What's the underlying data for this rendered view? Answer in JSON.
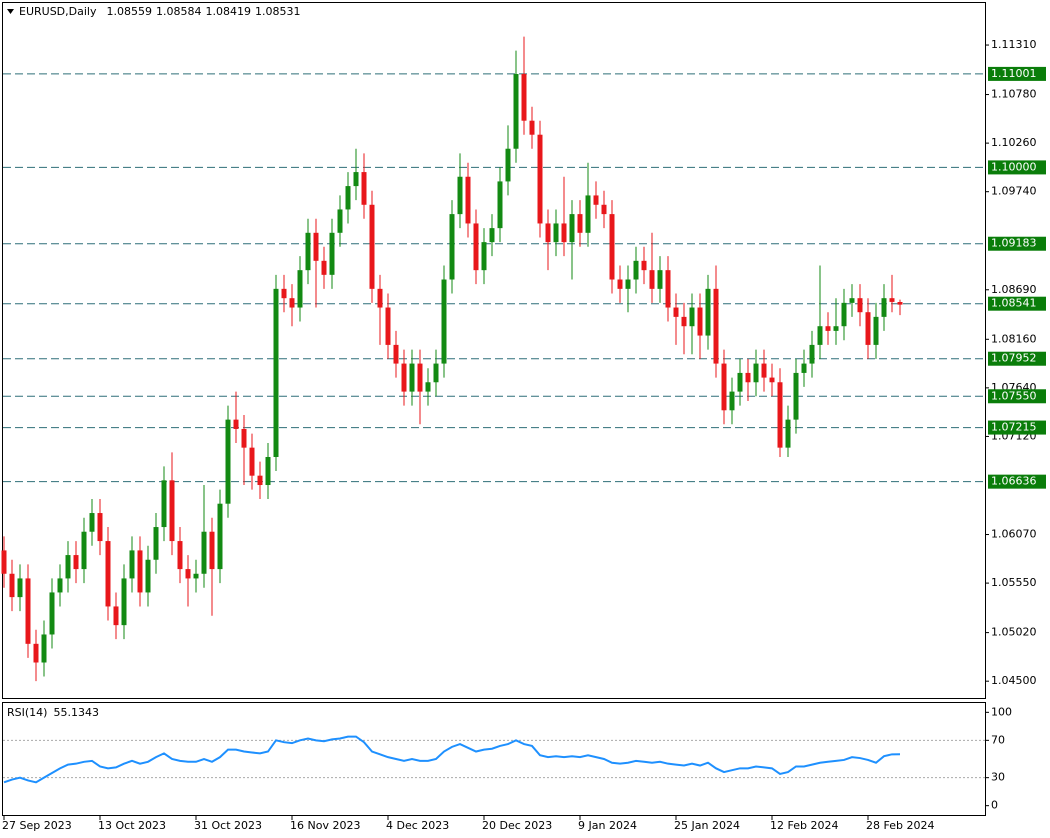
{
  "chart_data": [
    {
      "type": "candlestick",
      "title": "EURUSD,Daily",
      "up_color": "#138a13",
      "down_color": "#e8171b",
      "level_color": "#2f6f78",
      "level_label_color": "#0a7d0a",
      "categories": [
        "27 Sep 2023",
        null,
        null,
        null,
        null,
        null,
        null,
        null,
        null,
        null,
        null,
        null,
        "13 Oct 2023",
        null,
        null,
        null,
        null,
        null,
        null,
        null,
        null,
        null,
        null,
        null,
        "31 Oct 2023",
        null,
        null,
        null,
        null,
        null,
        null,
        null,
        null,
        null,
        null,
        null,
        "16 Nov 2023",
        null,
        null,
        null,
        null,
        null,
        null,
        null,
        null,
        null,
        null,
        null,
        "4 Dec 2023",
        null,
        null,
        null,
        null,
        null,
        null,
        null,
        null,
        null,
        null,
        null,
        "20 Dec 2023",
        null,
        null,
        null,
        null,
        null,
        null,
        null,
        null,
        null,
        null,
        null,
        "9 Jan 2024",
        null,
        null,
        null,
        null,
        null,
        null,
        null,
        null,
        null,
        null,
        null,
        "25 Jan 2024",
        null,
        null,
        null,
        null,
        null,
        null,
        null,
        null,
        null,
        null,
        null,
        "12 Feb 2024",
        null,
        null,
        null,
        null,
        null,
        null,
        null,
        null,
        null,
        null,
        null,
        "28 Feb 2024",
        null,
        null,
        null,
        null
      ],
      "open": [
        1.059,
        1.0565,
        1.054,
        1.056,
        1.049,
        1.047,
        1.05,
        1.0545,
        1.056,
        1.0585,
        1.057,
        1.061,
        1.063,
        1.06,
        1.053,
        1.051,
        1.056,
        1.059,
        1.0545,
        1.058,
        1.0615,
        1.0665,
        1.06,
        1.057,
        1.056,
        1.0565,
        1.061,
        1.057,
        1.064,
        1.073,
        1.072,
        1.07,
        1.067,
        1.066,
        1.069,
        1.087,
        1.086,
        1.085,
        1.089,
        1.093,
        1.09,
        1.0885,
        1.093,
        1.0955,
        1.098,
        1.0995,
        1.096,
        1.087,
        1.085,
        1.081,
        1.079,
        1.076,
        1.079,
        1.076,
        1.077,
        1.079,
        1.088,
        1.095,
        1.099,
        1.094,
        1.089,
        1.092,
        1.0935,
        1.0985,
        1.102,
        1.11,
        1.105,
        1.1035,
        1.094,
        1.092,
        1.094,
        1.092,
        1.095,
        1.093,
        1.097,
        1.096,
        1.095,
        1.088,
        1.087,
        1.088,
        1.09,
        1.089,
        1.087,
        1.089,
        1.085,
        1.084,
        1.083,
        1.085,
        1.082,
        1.087,
        1.079,
        1.074,
        1.076,
        1.078,
        1.077,
        1.079,
        1.0775,
        1.077,
        1.07,
        1.073,
        1.078,
        1.079,
        1.081,
        1.083,
        1.0825,
        1.083,
        1.0855,
        1.086,
        1.0845,
        1.081,
        1.084,
        1.086,
        1.08559
      ],
      "high": [
        1.0605,
        1.058,
        1.0575,
        1.0575,
        1.0505,
        1.0515,
        1.056,
        1.0575,
        1.06,
        1.06,
        1.0625,
        1.0645,
        1.0645,
        1.0615,
        1.0545,
        1.0575,
        1.0605,
        1.0605,
        1.0595,
        1.063,
        1.068,
        1.0695,
        1.0615,
        1.0585,
        1.058,
        1.066,
        1.0625,
        1.0655,
        1.0745,
        1.076,
        1.0735,
        1.0715,
        1.0685,
        1.0705,
        1.0885,
        1.0885,
        1.0875,
        1.0905,
        1.0945,
        1.0945,
        1.0915,
        1.0945,
        1.097,
        1.0995,
        1.102,
        1.1015,
        1.0975,
        1.0885,
        1.0865,
        1.0825,
        1.0805,
        1.0805,
        1.0805,
        1.0785,
        1.0805,
        1.0895,
        1.0965,
        1.1015,
        1.1005,
        1.0955,
        1.0935,
        1.095,
        1.1,
        1.1045,
        1.1125,
        1.114,
        1.1065,
        1.105,
        1.0955,
        1.0955,
        1.099,
        1.0965,
        1.0965,
        1.1005,
        1.0985,
        1.0975,
        1.0965,
        1.0895,
        1.0895,
        1.0915,
        1.0915,
        1.093,
        1.0905,
        1.0905,
        1.0865,
        1.0855,
        1.0865,
        1.0865,
        1.0885,
        1.0895,
        1.0805,
        1.0775,
        1.0795,
        1.0795,
        1.0805,
        1.0805,
        1.079,
        1.0785,
        1.0745,
        1.0795,
        1.0805,
        1.0825,
        1.0895,
        1.0845,
        1.086,
        1.087,
        1.0875,
        1.0875,
        1.086,
        1.0855,
        1.0875,
        1.0885,
        1.08584
      ],
      "low": [
        1.055,
        1.0525,
        1.0525,
        1.0475,
        1.045,
        1.0455,
        1.0485,
        1.053,
        1.0545,
        1.0555,
        1.0555,
        1.0595,
        1.0585,
        1.0515,
        1.0495,
        1.0495,
        1.0545,
        1.053,
        1.053,
        1.0565,
        1.06,
        1.0585,
        1.0555,
        1.053,
        1.0545,
        1.055,
        1.052,
        1.0555,
        1.0625,
        1.0705,
        1.066,
        1.0655,
        1.0645,
        1.0645,
        1.0675,
        1.0845,
        1.083,
        1.0835,
        1.0875,
        1.085,
        1.087,
        1.087,
        1.0915,
        1.094,
        1.0965,
        1.0945,
        1.0855,
        1.081,
        1.0795,
        1.0775,
        1.0745,
        1.0745,
        1.0725,
        1.0745,
        1.0755,
        1.0775,
        1.0865,
        1.0935,
        1.0925,
        1.0875,
        1.0875,
        1.0905,
        1.092,
        1.097,
        1.1005,
        1.1035,
        1.102,
        1.0925,
        1.089,
        1.0905,
        1.0905,
        1.088,
        1.0915,
        1.0915,
        1.0945,
        1.0935,
        1.0865,
        1.0855,
        1.0845,
        1.0865,
        1.0875,
        1.0855,
        1.0855,
        1.0835,
        1.081,
        1.08,
        1.08,
        1.0795,
        1.0805,
        1.0775,
        1.0725,
        1.0725,
        1.0745,
        1.075,
        1.0755,
        1.076,
        1.0755,
        1.069,
        1.069,
        1.0715,
        1.0765,
        1.0775,
        1.0795,
        1.081,
        1.081,
        1.0815,
        1.084,
        1.083,
        1.0795,
        1.0795,
        1.0825,
        1.0845,
        1.08419
      ],
      "close": [
        1.0565,
        1.054,
        1.056,
        1.049,
        1.047,
        1.05,
        1.0545,
        1.056,
        1.0585,
        1.057,
        1.061,
        1.063,
        1.06,
        1.053,
        1.051,
        1.056,
        1.059,
        1.0545,
        1.058,
        1.0615,
        1.0665,
        1.06,
        1.057,
        1.056,
        1.0565,
        1.061,
        1.057,
        1.064,
        1.073,
        1.072,
        1.07,
        1.067,
        1.066,
        1.069,
        1.087,
        1.086,
        1.085,
        1.089,
        1.093,
        1.09,
        1.0885,
        1.093,
        1.0955,
        1.098,
        1.0995,
        1.096,
        1.087,
        1.085,
        1.081,
        1.079,
        1.076,
        1.079,
        1.076,
        1.077,
        1.079,
        1.088,
        1.095,
        1.099,
        1.094,
        1.089,
        1.092,
        1.0935,
        1.0985,
        1.102,
        1.11,
        1.105,
        1.1035,
        1.094,
        1.092,
        1.094,
        1.092,
        1.095,
        1.093,
        1.097,
        1.096,
        1.095,
        1.088,
        1.087,
        1.088,
        1.09,
        1.089,
        1.087,
        1.089,
        1.085,
        1.084,
        1.083,
        1.085,
        1.082,
        1.087,
        1.079,
        1.074,
        1.076,
        1.078,
        1.077,
        1.079,
        1.0775,
        1.077,
        1.07,
        1.073,
        1.078,
        1.079,
        1.081,
        1.083,
        1.0825,
        1.083,
        1.0855,
        1.086,
        1.0845,
        1.081,
        1.084,
        1.086,
        1.0856,
        1.08531
      ],
      "ylim": [
        1.0432,
        1.1176
      ],
      "yticks": [
        {
          "value": 1.1131,
          "label": "1.11310"
        },
        {
          "value": 1.1078,
          "label": "1.10780"
        },
        {
          "value": 1.1026,
          "label": "1.10260"
        },
        {
          "value": 1.0974,
          "label": "1.09740"
        },
        {
          "value": 1.0869,
          "label": "1.08690"
        },
        {
          "value": 1.0816,
          "label": "1.08160"
        },
        {
          "value": 1.0764,
          "label": "1.07640"
        },
        {
          "value": 1.0712,
          "label": "1.07120"
        },
        {
          "value": 1.0607,
          "label": "1.06070"
        },
        {
          "value": 1.0555,
          "label": "1.05550"
        },
        {
          "value": 1.0502,
          "label": "1.05020"
        },
        {
          "value": 1.045,
          "label": "1.04500"
        }
      ],
      "levels": [
        1.11001,
        {
          "value": 1.1,
          "label": "1.10000"
        },
        1.09183,
        1.08541,
        1.07952,
        {
          "value": 1.0755,
          "label": "1.07550"
        },
        1.07215,
        1.06636
      ]
    },
    {
      "type": "line",
      "title": "RSI(14)",
      "color": "#1e90ff",
      "values": [
        25,
        28,
        30,
        27,
        25,
        30,
        35,
        40,
        44,
        45,
        47,
        48,
        42,
        40,
        41,
        45,
        48,
        45,
        47,
        52,
        56,
        50,
        48,
        47,
        47,
        50,
        47,
        52,
        60,
        60,
        58,
        57,
        56,
        58,
        70,
        68,
        67,
        70,
        72,
        70,
        69,
        71,
        72,
        74,
        74,
        68,
        58,
        55,
        52,
        50,
        48,
        50,
        48,
        48,
        50,
        58,
        63,
        66,
        62,
        58,
        60,
        61,
        64,
        66,
        70,
        66,
        64,
        54,
        52,
        53,
        52,
        53,
        52,
        54,
        52,
        50,
        46,
        45,
        46,
        48,
        47,
        46,
        47,
        45,
        44,
        43,
        45,
        43,
        46,
        40,
        36,
        38,
        40,
        40,
        42,
        41,
        40,
        34,
        36,
        42,
        42,
        44,
        46,
        47,
        48,
        49,
        52,
        51,
        49,
        46,
        53,
        55,
        55.1343
      ],
      "ylim": [
        -10,
        110
      ],
      "yticks": [
        100,
        70,
        30,
        0
      ],
      "dashed_ticks": [
        70,
        30
      ]
    }
  ]
}
